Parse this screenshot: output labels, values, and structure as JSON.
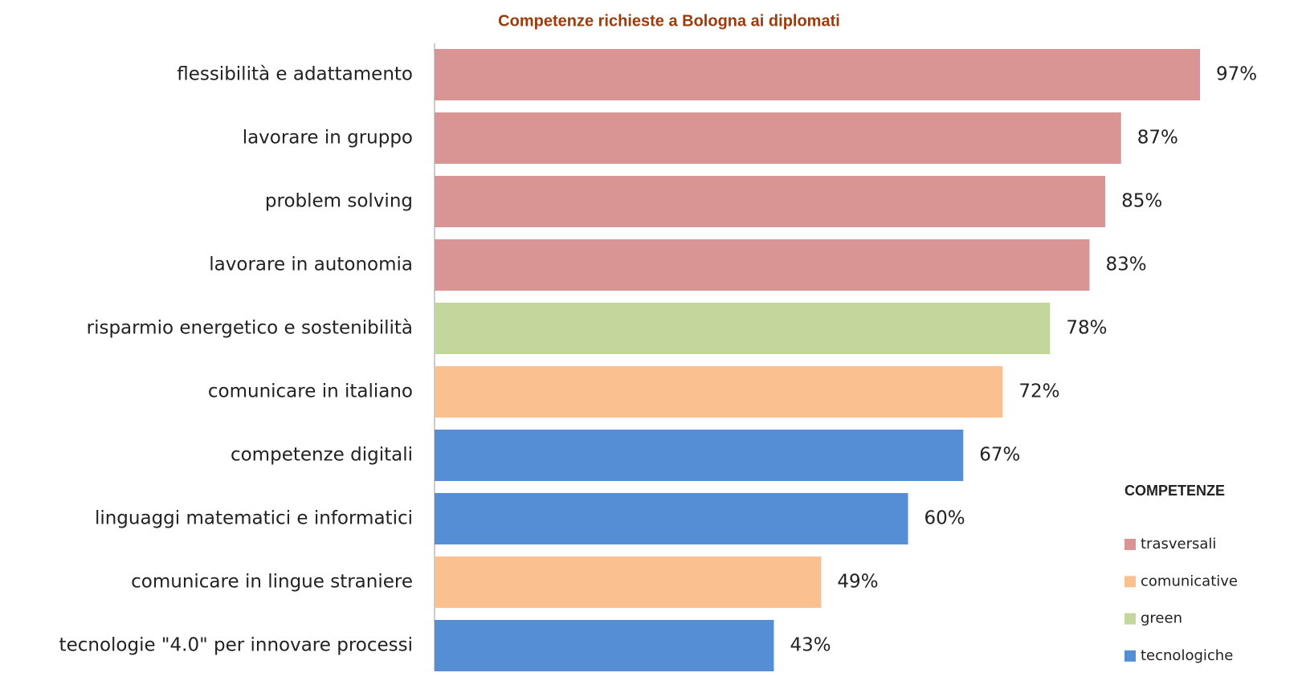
{
  "chart_data": {
    "type": "bar",
    "orientation": "horizontal",
    "title": "Competenze richieste a Bologna ai diplomati",
    "categories": [
      "flessibilità e adattamento",
      "lavorare in gruppo",
      "problem solving",
      "lavorare in autonomia",
      "risparmio energetico e sostenibilità",
      "comunicare in italiano",
      "competenze digitali",
      "linguaggi matematici e informatici",
      "comunicare in lingue straniere",
      "tecnologie \"4.0\" per innovare processi"
    ],
    "series": [
      {
        "name": "trasversali",
        "color": "#d99594",
        "values": [
          97,
          87,
          85,
          83,
          null,
          null,
          null,
          null,
          null,
          null
        ],
        "value_labels": [
          "97%",
          "87%",
          "85%",
          "83%",
          null,
          null,
          null,
          null,
          null,
          null
        ]
      },
      {
        "name": "comunicative",
        "color": "#fac090",
        "values": [
          null,
          null,
          null,
          null,
          null,
          72,
          null,
          null,
          49,
          null
        ],
        "value_labels": [
          null,
          null,
          null,
          null,
          null,
          "72%",
          null,
          null,
          "49%",
          null
        ]
      },
      {
        "name": "green",
        "color": "#c3d69b",
        "values": [
          null,
          null,
          null,
          null,
          78,
          null,
          null,
          null,
          null,
          null
        ],
        "value_labels": [
          null,
          null,
          null,
          null,
          "78%",
          null,
          null,
          null,
          null,
          null
        ]
      },
      {
        "name": "tecnologiche",
        "color": "#558ed5",
        "values": [
          null,
          null,
          null,
          null,
          null,
          null,
          67,
          60,
          null,
          43
        ],
        "value_labels": [
          null,
          null,
          null,
          null,
          null,
          null,
          "67%",
          "60%",
          null,
          "43%"
        ]
      }
    ],
    "xlim": [
      0,
      100
    ],
    "legend_title": "COMPETENZE",
    "legend": "bottom-right"
  }
}
